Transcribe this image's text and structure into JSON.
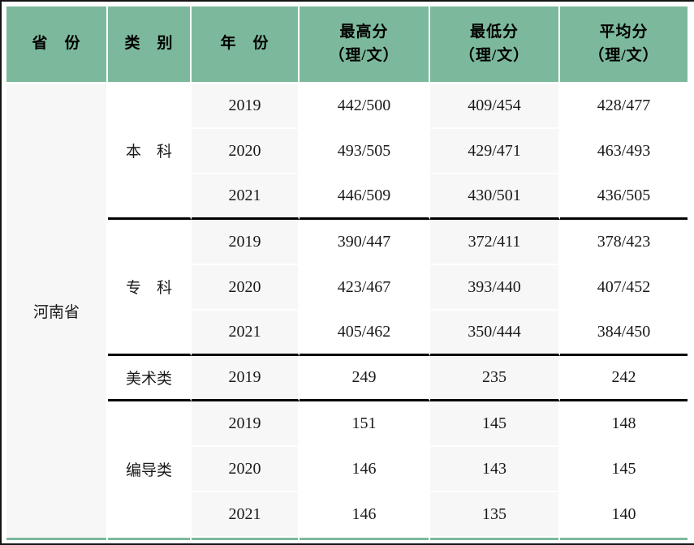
{
  "colors": {
    "header_bg": "#7cb99c",
    "stripe_bg": "#f7f7f7",
    "group_separator": "#000000",
    "bottom_rule": "#7cb99c",
    "frame_edge": "#141414",
    "text": "#1a1a1a"
  },
  "header": {
    "province": "省　份",
    "category": "类　别",
    "year": "年　份",
    "max": {
      "line1": "最高分",
      "line2": "（理/文）"
    },
    "min": {
      "line1": "最低分",
      "line2": "（理/文）"
    },
    "avg": {
      "line1": "平均分",
      "line2": "（理/文）"
    }
  },
  "province": "河南省",
  "groups": [
    {
      "category": "本　科",
      "rows": [
        {
          "year": "2019",
          "max": "442/500",
          "min": "409/454",
          "avg": "428/477"
        },
        {
          "year": "2020",
          "max": "493/505",
          "min": "429/471",
          "avg": "463/493"
        },
        {
          "year": "2021",
          "max": "446/509",
          "min": "430/501",
          "avg": "436/505"
        }
      ]
    },
    {
      "category": "专　科",
      "rows": [
        {
          "year": "2019",
          "max": "390/447",
          "min": "372/411",
          "avg": "378/423"
        },
        {
          "year": "2020",
          "max": "423/467",
          "min": "393/440",
          "avg": "407/452"
        },
        {
          "year": "2021",
          "max": "405/462",
          "min": "350/444",
          "avg": "384/450"
        }
      ]
    },
    {
      "category": "美术类",
      "rows": [
        {
          "year": "2019",
          "max": "249",
          "min": "235",
          "avg": "242"
        }
      ]
    },
    {
      "category": "编导类",
      "rows": [
        {
          "year": "2019",
          "max": "151",
          "min": "145",
          "avg": "148"
        },
        {
          "year": "2020",
          "max": "146",
          "min": "143",
          "avg": "145"
        },
        {
          "year": "2021",
          "max": "146",
          "min": "135",
          "avg": "140"
        }
      ]
    }
  ]
}
